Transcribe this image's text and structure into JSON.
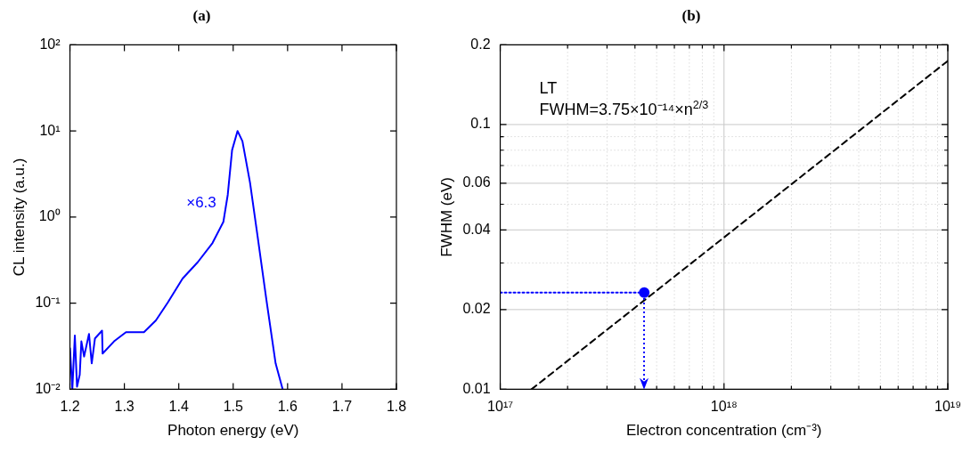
{
  "chart_data": [
    {
      "type": "line",
      "title": "(a)",
      "xlabel": "Photon energy (eV)",
      "ylabel": "CL intensity (a.u.)",
      "log": "y",
      "grid": false,
      "marker": "none",
      "line_style": "solid",
      "xlim": [
        1.2,
        1.8
      ],
      "xticks": [
        1.2,
        1.3,
        1.4,
        1.5,
        1.6,
        1.7,
        1.8
      ],
      "ylim": [
        0.01,
        100
      ],
      "yticks": [
        {
          "value": 0.01,
          "label": "10⁻²"
        },
        {
          "value": 0.1,
          "label": "10⁻¹"
        },
        {
          "value": 1,
          "label": "10⁰"
        },
        {
          "value": 10,
          "label": "10¹"
        },
        {
          "value": 100,
          "label": "10²"
        }
      ],
      "annotations": [
        {
          "text": "×6.3",
          "x": 1.482,
          "y": 0.88
        }
      ],
      "series": [
        {
          "color": "#0000ff",
          "x": [
            1.2,
            1.2044,
            1.209,
            1.213,
            1.218,
            1.221,
            1.226,
            1.235,
            1.24,
            1.246,
            1.259,
            1.26,
            1.281,
            1.303,
            1.336,
            1.358,
            1.38,
            1.407,
            1.435,
            1.462,
            1.482,
            1.49,
            1.498,
            1.508,
            1.517,
            1.531,
            1.545,
            1.561,
            1.578,
            1.591
          ],
          "values": [
            0.03,
            0.01,
            0.042,
            0.0107,
            0.0148,
            0.036,
            0.024,
            0.044,
            0.02,
            0.039,
            0.048,
            0.026,
            0.036,
            0.046,
            0.046,
            0.063,
            0.102,
            0.193,
            0.3,
            0.5,
            0.88,
            1.81,
            6.0,
            10,
            7.6,
            2.5,
            0.59,
            0.11,
            0.02,
            0.01
          ]
        }
      ]
    },
    {
      "type": "line",
      "title": "(b)",
      "xlabel": "Electron concentration (cm⁻³)",
      "ylabel": "FWHM (eV)",
      "log": "xy",
      "grid": true,
      "xlim": [
        1e+17,
        1e+19
      ],
      "xticks": [
        {
          "value": 1e+17,
          "label": "10¹⁷"
        },
        {
          "value": 2e+17,
          "label": null
        },
        {
          "value": 3e+17,
          "label": null
        },
        {
          "value": 4e+17,
          "label": null
        },
        {
          "value": 5e+17,
          "label": null
        },
        {
          "value": 6e+17,
          "label": null
        },
        {
          "value": 7e+17,
          "label": null
        },
        {
          "value": 8e+17,
          "label": null
        },
        {
          "value": 9e+17,
          "label": null
        },
        {
          "value": 1e+18,
          "label": "10¹⁸"
        },
        {
          "value": 2e+18,
          "label": null
        },
        {
          "value": 3e+18,
          "label": null
        },
        {
          "value": 4e+18,
          "label": null
        },
        {
          "value": 5e+18,
          "label": null
        },
        {
          "value": 6e+18,
          "label": null
        },
        {
          "value": 7e+18,
          "label": null
        },
        {
          "value": 8e+18,
          "label": null
        },
        {
          "value": 9e+18,
          "label": null
        },
        {
          "value": 1e+19,
          "label": "10¹⁹"
        }
      ],
      "ylim": [
        0.01,
        0.2
      ],
      "yticks": [
        0.01,
        0.02,
        {
          "value": 0.03,
          "label": null
        },
        0.04,
        {
          "value": 0.05,
          "label": null
        },
        0.06,
        {
          "value": 0.07,
          "label": null
        },
        {
          "value": 0.08,
          "label": null
        },
        {
          "value": 0.09,
          "label": null
        },
        0.1,
        0.2
      ],
      "annotations": [
        "LT",
        "FWHM=3.75×10⁻¹⁴×n$^{2/3}$"
      ],
      "series": [
        {
          "type": "line",
          "color": "#000000",
          "line_style": "dashed",
          "marker": "none",
          "x": [
            1.38e+17,
            1e+19
          ],
          "values": [
            0.01,
            0.174
          ]
        },
        {
          "type": "line",
          "color": "#0000ff",
          "line_style": "dotted",
          "marker": "none",
          "x": [
            1e+17,
            4.4e+17
          ],
          "values": [
            0.0232,
            0.0232
          ]
        },
        {
          "type": "scatter",
          "color": "#0000ff",
          "marker": "circle",
          "x": [
            4.4e+17
          ],
          "values": [
            0.0232
          ]
        }
      ]
    }
  ]
}
